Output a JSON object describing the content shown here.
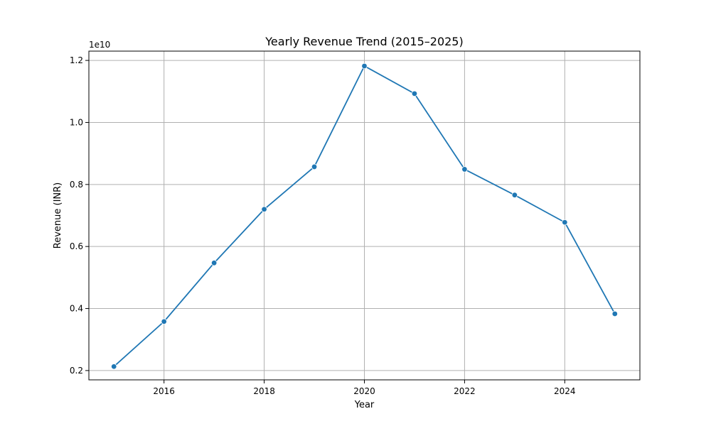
{
  "chart_data": {
    "type": "line",
    "title": "Yearly Revenue Trend (2015–2025)",
    "xlabel": "Year",
    "ylabel": "Revenue (INR)",
    "y_offset_label": "1e10",
    "xlim": [
      2014.5,
      2025.5
    ],
    "ylim": [
      0.17,
      1.23
    ],
    "x_ticks": [
      2016,
      2018,
      2020,
      2022,
      2024
    ],
    "y_ticks": [
      0.2,
      0.4,
      0.6,
      0.8,
      1.0,
      1.2
    ],
    "y_tick_labels": [
      "0.2",
      "0.4",
      "0.6",
      "0.8",
      "1.0",
      "1.2"
    ],
    "grid": true,
    "series": [
      {
        "color": "#1f77b4",
        "marker": "circle",
        "x": [
          2015,
          2016,
          2017,
          2018,
          2019,
          2020,
          2021,
          2022,
          2023,
          2024,
          2025
        ],
        "y": [
          0.213,
          0.358,
          0.547,
          0.72,
          0.857,
          1.182,
          1.093,
          0.849,
          0.766,
          0.678,
          0.383
        ]
      }
    ]
  }
}
